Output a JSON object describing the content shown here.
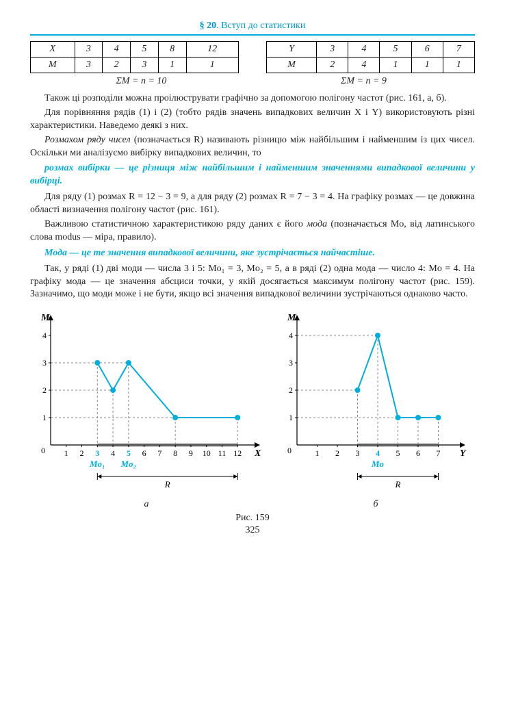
{
  "header": {
    "section": "§ 20",
    "title": ". Вступ до статистики"
  },
  "table_left": {
    "rows": [
      [
        "X",
        "3",
        "4",
        "5",
        "8",
        "12"
      ],
      [
        "M",
        "3",
        "2",
        "3",
        "1",
        "1"
      ]
    ],
    "sigma": "ΣM = n = 10"
  },
  "table_right": {
    "rows": [
      [
        "Y",
        "3",
        "4",
        "5",
        "6",
        "7"
      ],
      [
        "M",
        "2",
        "4",
        "1",
        "1",
        "1"
      ]
    ],
    "sigma": "ΣM = n = 9"
  },
  "para1": "Також ці розподіли можна проілюструвати графічно за допомогою полігону частот (рис. 161, а, б).",
  "para2": "Для порівняння рядів (1) і (2) (тобто рядів значень випадкових величин X і Y) використовують різні характеристики. Наведемо деякі з них.",
  "para3a": "Розмахом ряду чисел",
  "para3b": " (позначається R) називають різницю між найбільшим і найменшим із цих чисел. Оскільки ми аналізуємо вибірку випадкових величин, то",
  "defn1": "розмах вибірки — це різниця між найбільшим і найменшим значеннями випадкової величини у вибірці.",
  "para4": "Для ряду (1) розмах R = 12 − 3 = 9, а для ряду (2) розмах R = 7 − 3 = 4. На графіку розмах — це довжина області визначення полігону частот (рис. 161).",
  "para5a": "Важливою статистичною характеристикою ряду даних є його ",
  "para5b": "мода",
  "para5c": " (позначається Mo, від латинського слова modus — міра, правило).",
  "defn2": "Мода — це те значення випадкової величини, яке зустрічається найчастіше.",
  "para6": "Так, у ряді (1) дві моди — числа 3 і 5: Mo₁ = 3, Mo₂ = 5, а в ряді (2) одна мода — число 4: Mo = 4. На графіку мода — це значення абсциси точки, у якій досягається максимум полігону частот (рис. 159). Зазначимо, що моди може і не бути, якщо всі значення випадкової величини зустрічаються однаково часто.",
  "chart_a": {
    "type": "line",
    "x_values": [
      3,
      4,
      5,
      8,
      12
    ],
    "y_values": [
      3,
      2,
      3,
      1,
      1
    ],
    "x_ticks": [
      1,
      2,
      3,
      4,
      5,
      6,
      7,
      8,
      9,
      10,
      11,
      12
    ],
    "y_ticks": [
      0,
      1,
      2,
      3,
      4
    ],
    "xlim": [
      0,
      13
    ],
    "ylim": [
      0,
      4.5
    ],
    "line_color": "#00aedb",
    "marker_color": "#00aedb",
    "axis_color": "#000000",
    "dash_color": "#888888",
    "y_label": "M",
    "x_label": "X",
    "modes": [
      {
        "x": 3,
        "label": "Mo₁",
        "color": "#00aedb"
      },
      {
        "x": 5,
        "label": "Mo₂",
        "color": "#00aedb"
      }
    ],
    "range_bar": {
      "from": 3,
      "to": 12,
      "label": "R"
    },
    "sub_label": "а",
    "line_width": 2,
    "marker_radius": 4
  },
  "chart_b": {
    "type": "line",
    "x_values": [
      3,
      4,
      5,
      6,
      7
    ],
    "y_values": [
      2,
      4,
      1,
      1,
      1
    ],
    "x_ticks": [
      1,
      2,
      3,
      4,
      5,
      6,
      7
    ],
    "y_ticks": [
      0,
      1,
      2,
      3,
      4
    ],
    "xlim": [
      0,
      8
    ],
    "ylim": [
      0,
      4.5
    ],
    "line_color": "#00aedb",
    "marker_color": "#00aedb",
    "axis_color": "#000000",
    "dash_color": "#888888",
    "y_label": "M",
    "x_label": "Y",
    "modes": [
      {
        "x": 4,
        "label": "Mo",
        "color": "#00aedb"
      }
    ],
    "range_bar": {
      "from": 3,
      "to": 7,
      "label": "R"
    },
    "sub_label": "б",
    "line_width": 2,
    "marker_radius": 4
  },
  "fig_caption": "Рис. 159",
  "page_number": "325"
}
